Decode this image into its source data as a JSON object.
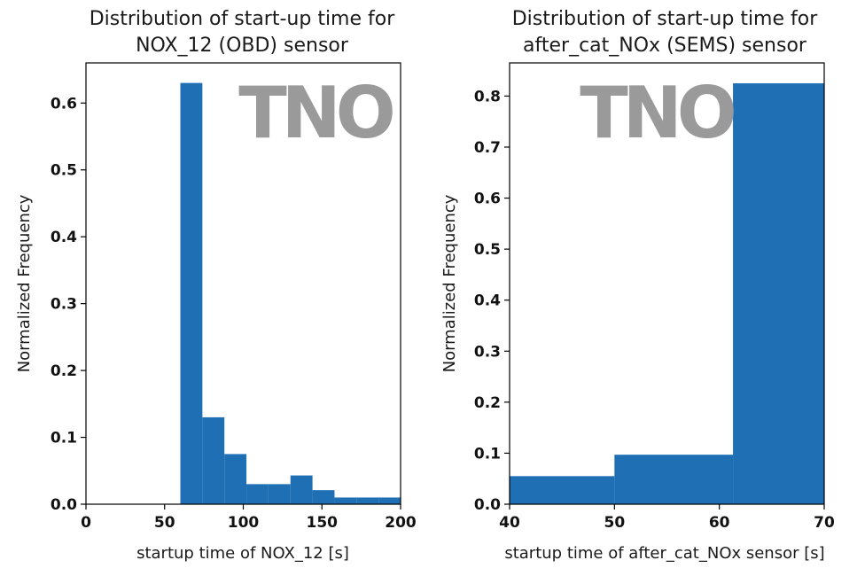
{
  "watermark_text": "TNO",
  "chart_data": [
    {
      "type": "bar",
      "title": [
        "Distribution of start-up time for",
        "NOX_12 (OBD) sensor"
      ],
      "xlabel": "startup time of NOX_12 [s]",
      "ylabel": "Normalized Frequency",
      "xlim": [
        0,
        200
      ],
      "ylim": [
        0,
        0.66
      ],
      "xticks": [
        0,
        50,
        100,
        150,
        200
      ],
      "xtick_labels": [
        "0",
        "50",
        "100",
        "150",
        "200"
      ],
      "yticks": [
        0.0,
        0.1,
        0.2,
        0.3,
        0.4,
        0.5,
        0.6
      ],
      "ytick_labels": [
        "0.0",
        "0.1",
        "0.2",
        "0.3",
        "0.4",
        "0.5",
        "0.6"
      ],
      "bar_color": "#1f6fb4",
      "bins": [
        {
          "x0": 60,
          "x1": 74,
          "value": 0.63
        },
        {
          "x0": 74,
          "x1": 88,
          "value": 0.13
        },
        {
          "x0": 88,
          "x1": 102,
          "value": 0.075
        },
        {
          "x0": 102,
          "x1": 116,
          "value": 0.03
        },
        {
          "x0": 116,
          "x1": 130,
          "value": 0.03
        },
        {
          "x0": 130,
          "x1": 144,
          "value": 0.043
        },
        {
          "x0": 144,
          "x1": 158,
          "value": 0.021
        },
        {
          "x0": 158,
          "x1": 172,
          "value": 0.01
        },
        {
          "x0": 172,
          "x1": 186,
          "value": 0.01
        },
        {
          "x0": 186,
          "x1": 200,
          "value": 0.01
        }
      ],
      "watermark": "TNO",
      "grid": false
    },
    {
      "type": "bar",
      "title": [
        "Distribution of start-up time for",
        "after_cat_NOx (SEMS) sensor"
      ],
      "xlabel": "startup time of after_cat_NOx sensor [s]",
      "ylabel": "Normalized Frequency",
      "xlim": [
        40,
        70
      ],
      "ylim": [
        0,
        0.865
      ],
      "xticks": [
        40,
        50,
        60,
        70
      ],
      "xtick_labels": [
        "40",
        "50",
        "60",
        "70"
      ],
      "yticks": [
        0.0,
        0.1,
        0.2,
        0.3,
        0.4,
        0.5,
        0.6,
        0.7,
        0.8
      ],
      "ytick_labels": [
        "0.0",
        "0.1",
        "0.2",
        "0.3",
        "0.4",
        "0.5",
        "0.6",
        "0.7",
        "0.8"
      ],
      "bar_color": "#1f6fb4",
      "bins": [
        {
          "x0": 40,
          "x1": 50,
          "value": 0.055
        },
        {
          "x0": 50,
          "x1": 61.3,
          "value": 0.097
        },
        {
          "x0": 61.3,
          "x1": 70,
          "value": 0.825
        }
      ],
      "watermark": "TNO",
      "grid": false
    }
  ]
}
